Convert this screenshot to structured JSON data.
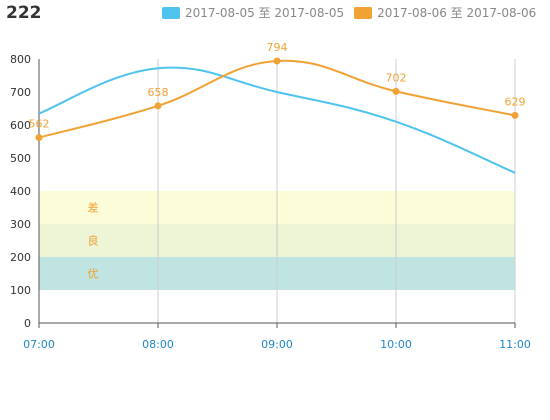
{
  "header": {
    "title": "222"
  },
  "chart_data": {
    "type": "line",
    "categories": [
      "07:00",
      "08:00",
      "09:00",
      "10:00",
      "11:00"
    ],
    "ylim": [
      0,
      800
    ],
    "yticks": [
      "0",
      "100",
      "200",
      "300",
      "400",
      "500",
      "600",
      "700",
      "800"
    ],
    "grid": "vertical",
    "legend_position": "top-right",
    "series": [
      {
        "name": "2017-08-05 至 2017-08-05",
        "color": "#4fc3ef",
        "values": [
          635,
          772,
          700,
          610,
          455
        ],
        "show_labels": false,
        "markers": false
      },
      {
        "name": "2017-08-06 至 2017-08-06",
        "color": "#f0a234",
        "values": [
          562,
          658,
          794,
          702,
          629
        ],
        "labels": [
          "562",
          "658",
          "794",
          "702",
          "629"
        ],
        "show_labels": true,
        "markers": true
      }
    ],
    "bands": [
      {
        "label": "优",
        "from": 100,
        "to": 200,
        "color": "#bfe4e2"
      },
      {
        "label": "良",
        "from": 200,
        "to": 300,
        "color": "#eef5d6"
      },
      {
        "label": "差",
        "from": 300,
        "to": 400,
        "color": "#fcfcd8"
      }
    ]
  }
}
